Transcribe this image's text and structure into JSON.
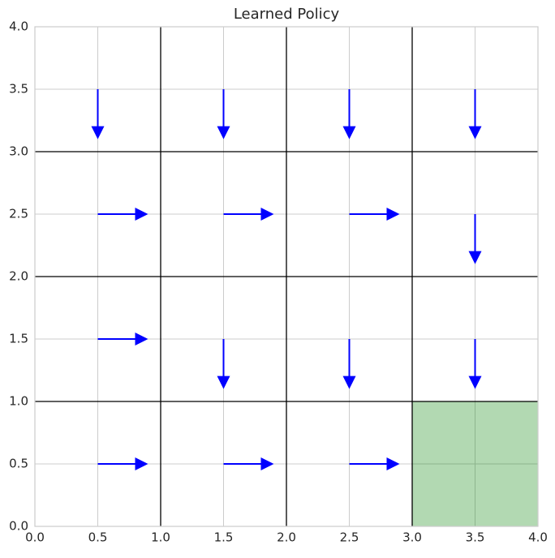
{
  "chart_data": {
    "type": "quiver",
    "title": "Learned Policy",
    "xlim": [
      0,
      4
    ],
    "ylim": [
      0,
      4
    ],
    "xticks": [
      {
        "value": 0,
        "label": "0.0"
      },
      0.5,
      {
        "value": 1,
        "label": "1.0"
      },
      1.5,
      {
        "value": 2,
        "label": "2.0"
      },
      2.5,
      {
        "value": 3,
        "label": "3.0"
      },
      3.5,
      {
        "value": 4,
        "label": "4.0"
      }
    ],
    "yticks": [
      {
        "value": 0,
        "label": "0.0"
      },
      0.5,
      {
        "value": 1,
        "label": "1.0"
      },
      1.5,
      {
        "value": 2,
        "label": "2.0"
      },
      2.5,
      {
        "value": 3,
        "label": "3.0"
      },
      3.5,
      {
        "value": 4,
        "label": "4.0"
      }
    ],
    "grid": true,
    "cell_boundaries": [
      1,
      2,
      3
    ],
    "goal": {
      "x": 3,
      "y": 0,
      "width": 1,
      "height": 1,
      "color": "#008000",
      "alpha": 0.3
    },
    "color": "#0000ff",
    "x": [
      0.5,
      1.5,
      2.5,
      3.5,
      0.5,
      1.5,
      2.5,
      3.5,
      0.5,
      1.5,
      2.5,
      3.5,
      0.5,
      1.5,
      2.5
    ],
    "y": [
      3.5,
      3.5,
      3.5,
      3.5,
      2.5,
      2.5,
      2.5,
      2.5,
      1.5,
      1.5,
      1.5,
      1.5,
      0.5,
      0.5,
      0.5
    ],
    "u": [
      0,
      0,
      0,
      0,
      0.4,
      0.4,
      0.4,
      0,
      0.4,
      0,
      0,
      0,
      0.4,
      0.4,
      0.4
    ],
    "v": [
      -0.4,
      -0.4,
      -0.4,
      -0.4,
      0,
      0,
      0,
      -0.4,
      0,
      -0.4,
      -0.4,
      -0.4,
      0,
      0,
      0
    ]
  }
}
